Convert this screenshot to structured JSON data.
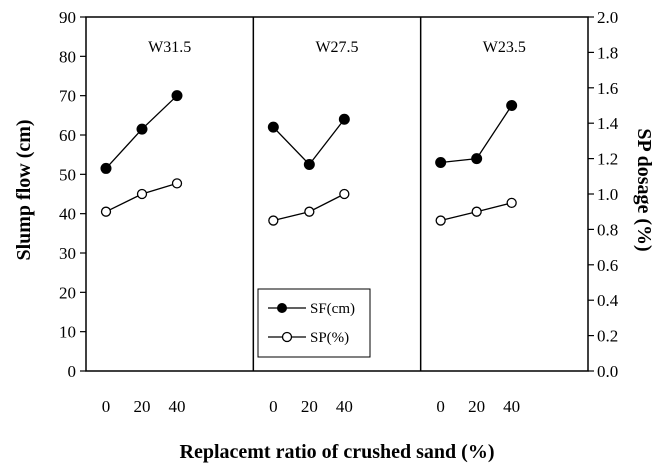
{
  "chart_data": {
    "type": "line",
    "xlabel": "Replacemt ratio of crushed sand (%)",
    "ylabel_left": "Slump flow (cm)",
    "ylabel_right": "SP dosage (%)",
    "ylim_left": [
      0,
      90
    ],
    "ylim_right": [
      0.0,
      2.0
    ],
    "yticks_left": [
      "0",
      "10",
      "20",
      "30",
      "40",
      "50",
      "60",
      "70",
      "80",
      "90"
    ],
    "yticks_right": [
      "0.0",
      "0.2",
      "0.4",
      "0.6",
      "0.8",
      "1.0",
      "1.2",
      "1.4",
      "1.6",
      "1.8",
      "2.0"
    ],
    "categories": [
      "0",
      "20",
      "40"
    ],
    "grid": false,
    "legend_position": "bottom-center",
    "legend": [
      {
        "series": "SF",
        "label": "SF(cm)",
        "marker": "filled-circle"
      },
      {
        "series": "SP",
        "label": "SP(%)",
        "marker": "open-circle"
      }
    ],
    "panels": [
      {
        "label": "W31.5",
        "SF": [
          51.5,
          61.5,
          70
        ],
        "SP": [
          0.9,
          1.0,
          1.06
        ]
      },
      {
        "label": "W27.5",
        "SF": [
          62,
          52.5,
          64
        ],
        "SP": [
          0.85,
          0.9,
          1.0
        ]
      },
      {
        "label": "W23.5",
        "SF": [
          53,
          54,
          67.5
        ],
        "SP": [
          0.85,
          0.9,
          0.95
        ]
      }
    ]
  }
}
